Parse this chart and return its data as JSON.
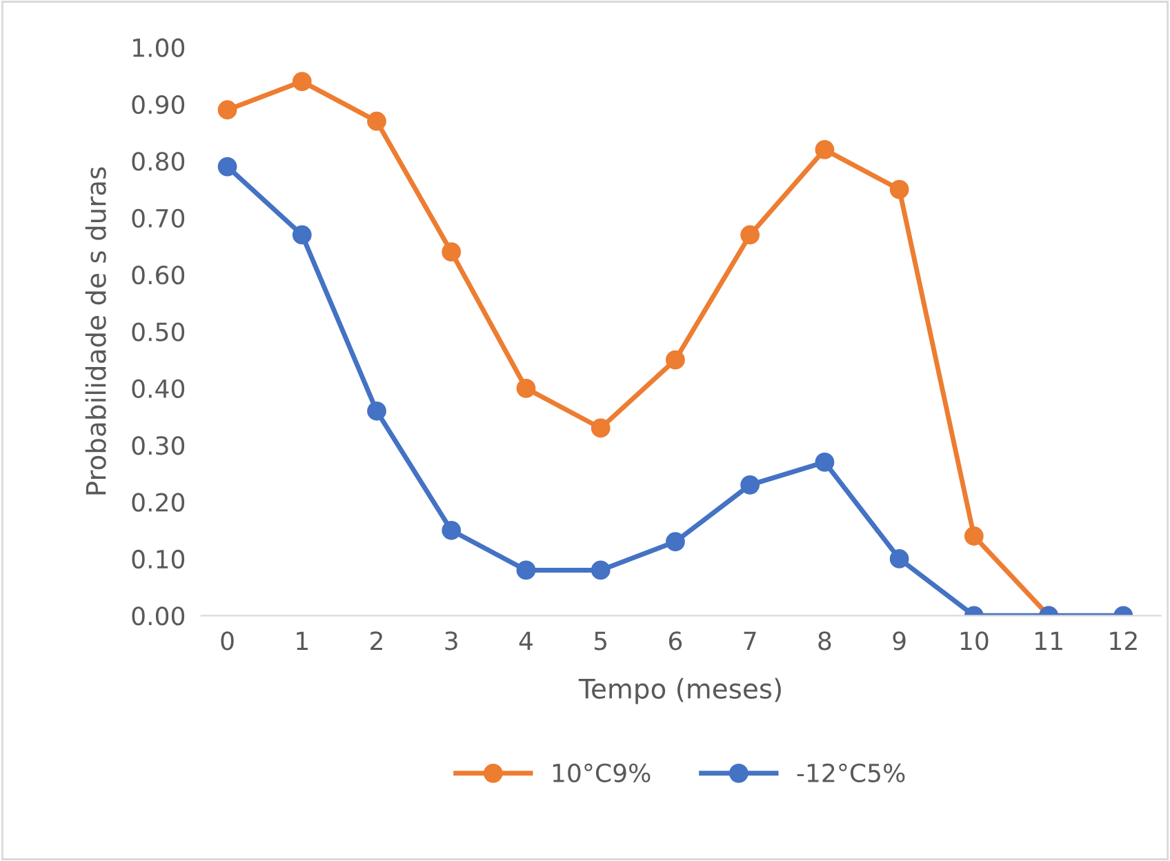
{
  "chart_data": {
    "type": "line",
    "xlabel": "Tempo (meses)",
    "ylabel": "Probabilidade de s duras",
    "categories": [
      "0",
      "1",
      "2",
      "3",
      "4",
      "5",
      "6",
      "7",
      "8",
      "9",
      "10",
      "11",
      "12"
    ],
    "series": [
      {
        "name": "10°C9%",
        "color": "#ed7d31",
        "values": [
          0.89,
          0.94,
          0.87,
          0.64,
          0.4,
          0.33,
          0.45,
          0.67,
          0.82,
          0.75,
          0.14,
          0.0,
          null
        ]
      },
      {
        "name": "-12°C5%",
        "color": "#4472c4",
        "values": [
          0.79,
          0.67,
          0.36,
          0.15,
          0.08,
          0.08,
          0.13,
          0.23,
          0.27,
          0.1,
          0.0,
          0.0,
          0.0
        ]
      }
    ],
    "ylim": [
      0,
      1
    ],
    "yticks": [
      {
        "value": 0,
        "label": "0.00"
      },
      {
        "value": 0.1,
        "label": "0.10"
      },
      {
        "value": 0.2,
        "label": "0.20"
      },
      {
        "value": 0.3,
        "label": "0.30"
      },
      {
        "value": 0.4,
        "label": "0.40"
      },
      {
        "value": 0.5,
        "label": "0.50"
      },
      {
        "value": 0.6,
        "label": "0.60"
      },
      {
        "value": 0.7,
        "label": "0.70"
      },
      {
        "value": 0.8,
        "label": "0.80"
      },
      {
        "value": 0.9,
        "label": "0.90"
      },
      {
        "value": 1,
        "label": "1.00"
      }
    ],
    "grid": false,
    "legend": "bottom",
    "marker": "circle",
    "line_style": "solid"
  }
}
